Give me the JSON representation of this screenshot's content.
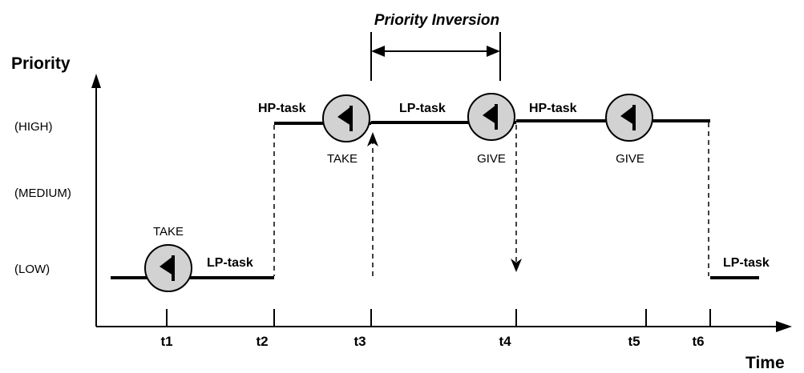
{
  "axes": {
    "y_title": "Priority",
    "x_title": "Time",
    "levels": {
      "high": "(HIGH)",
      "medium": "(MEDIUM)",
      "low": "(LOW)"
    },
    "ticks": {
      "t1": "t1",
      "t2": "t2",
      "t3": "t3",
      "t4": "t4",
      "t5": "t5",
      "t6": "t6"
    }
  },
  "annotation": {
    "priority_inversion": "Priority Inversion"
  },
  "segments": {
    "low_lp_1": "LP-task",
    "high_hp_1": "HP-task",
    "high_lp": "LP-task",
    "high_hp_2": "HP-task",
    "low_lp_2": "LP-task"
  },
  "events": {
    "take_1": "TAKE",
    "take_2": "TAKE",
    "give_1": "GIVE",
    "give_2": "GIVE"
  },
  "icons": [
    "flag-icon"
  ],
  "colors": {
    "circle_fill": "#d2d2d2",
    "line": "#000000"
  }
}
